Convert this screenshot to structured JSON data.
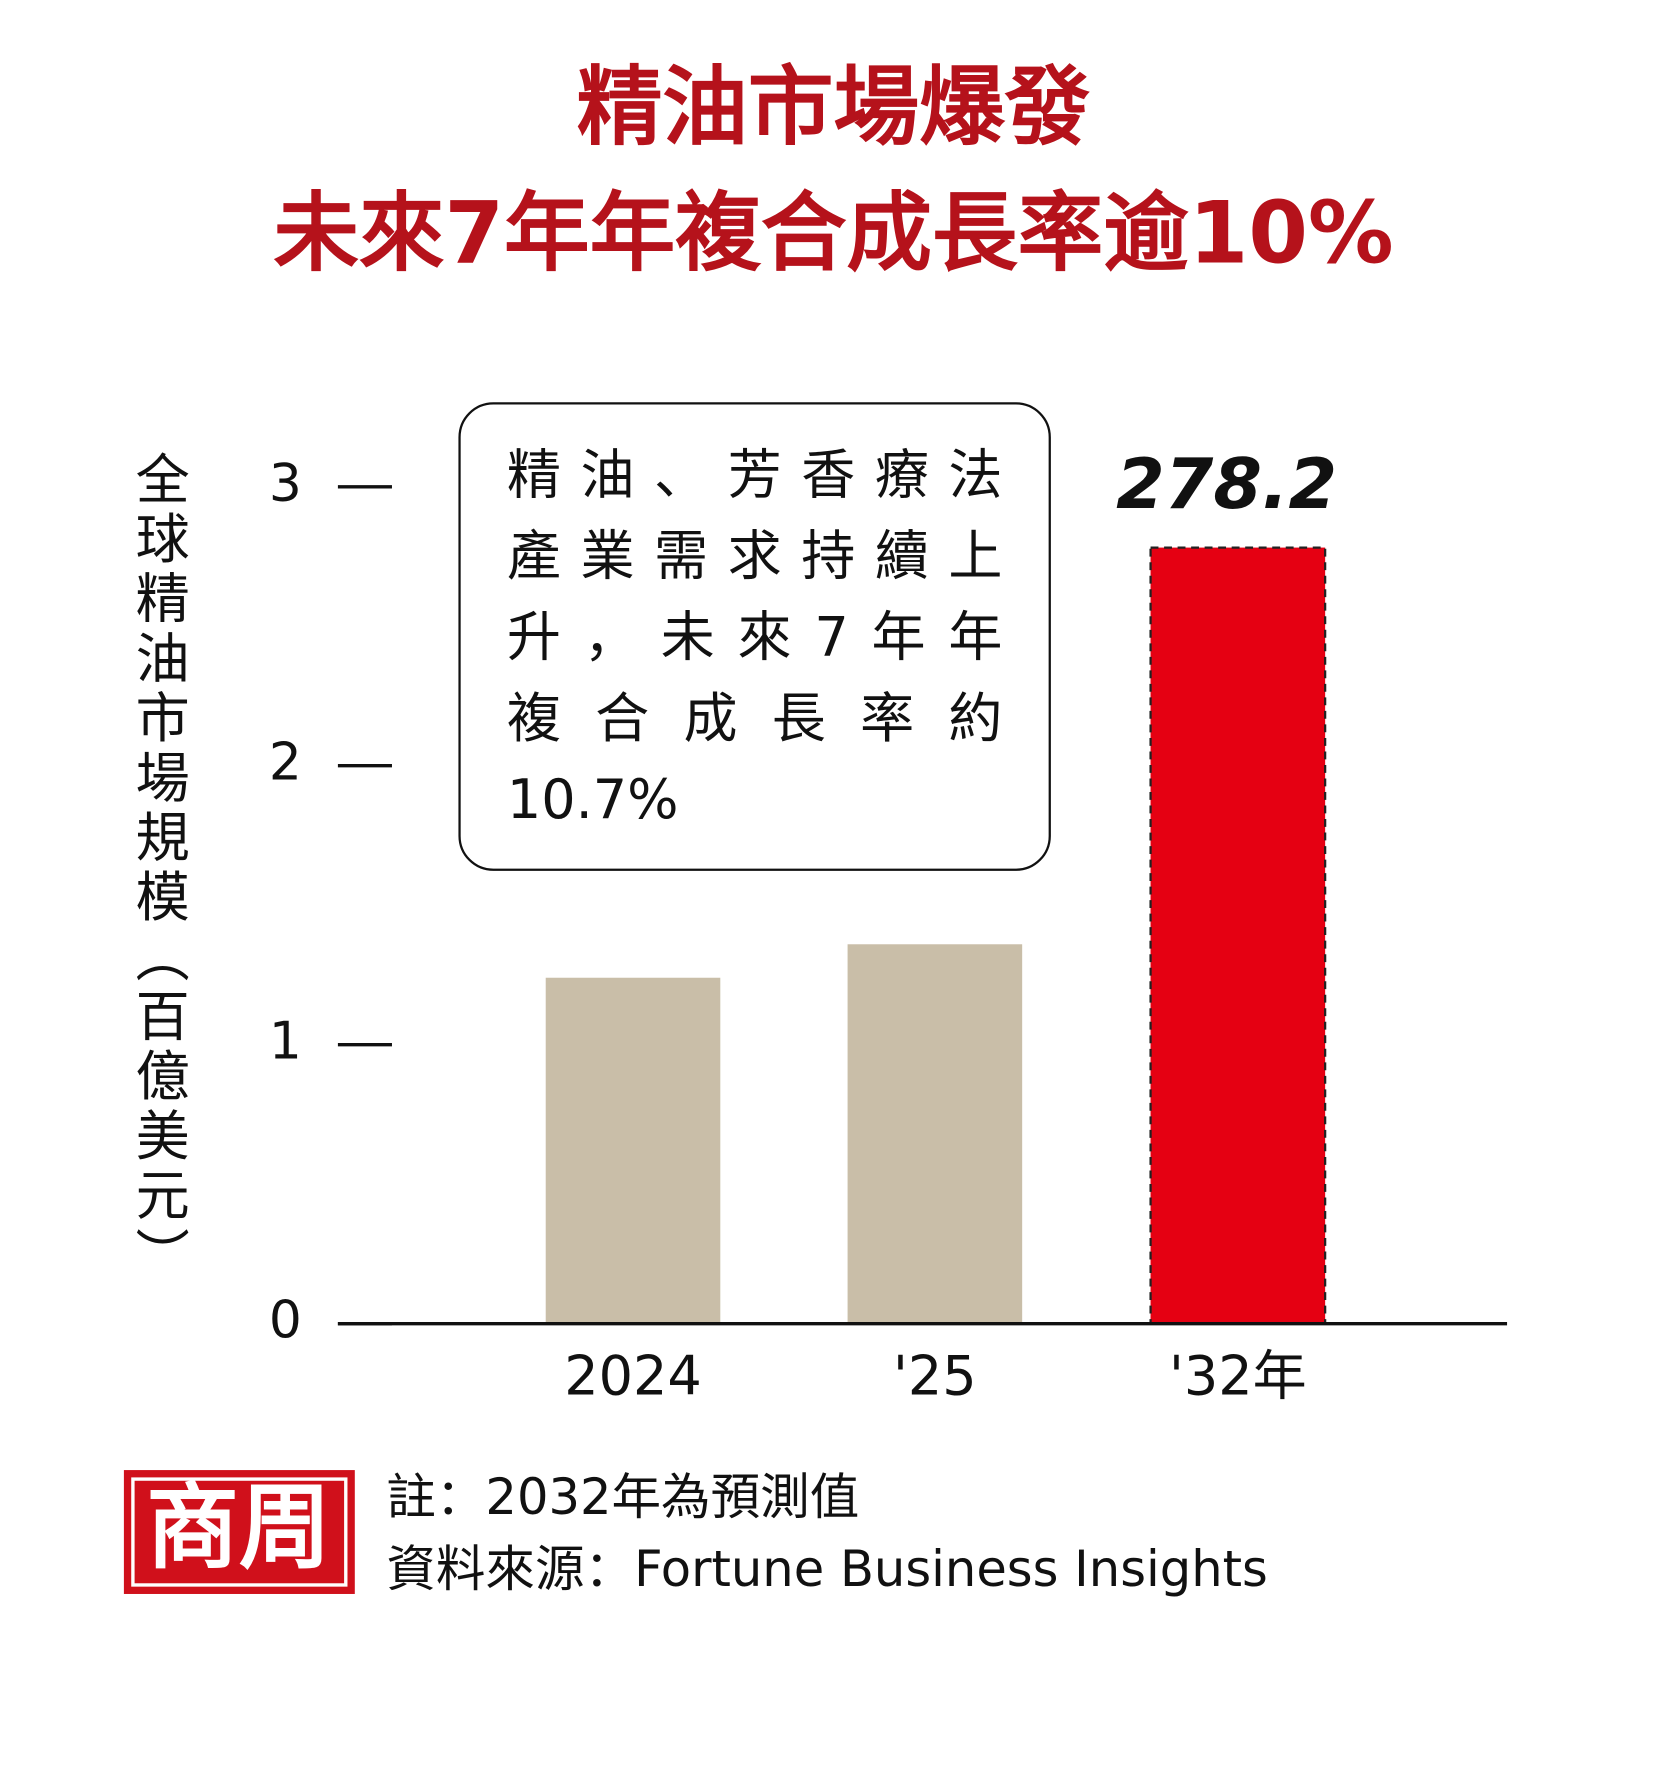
{
  "chart_data": {
    "type": "bar",
    "title": [
      "精油市場爆發",
      "未來7年年複合成長率逾10%"
    ],
    "ylabel": "全球精油市場規模（百億美元）",
    "categories": [
      "2024",
      "'25",
      "'32年"
    ],
    "values": [
      1.24,
      1.36,
      2.782
    ],
    "value_labels": [
      null,
      null,
      "278.2"
    ],
    "colors": [
      "#c9bea8",
      "#c9bea8",
      "#e50012"
    ],
    "ylim": [
      0,
      3
    ],
    "yticks": [
      0,
      1,
      2,
      3
    ],
    "annotation": [
      "精油、芳香療法",
      "產業需求持續上",
      "升，未來7年年",
      "複合成長率約",
      "10.7%"
    ],
    "note": "註：2032年為預測值",
    "source": "資料來源：Fortune Business Insights",
    "logo": "商周"
  }
}
